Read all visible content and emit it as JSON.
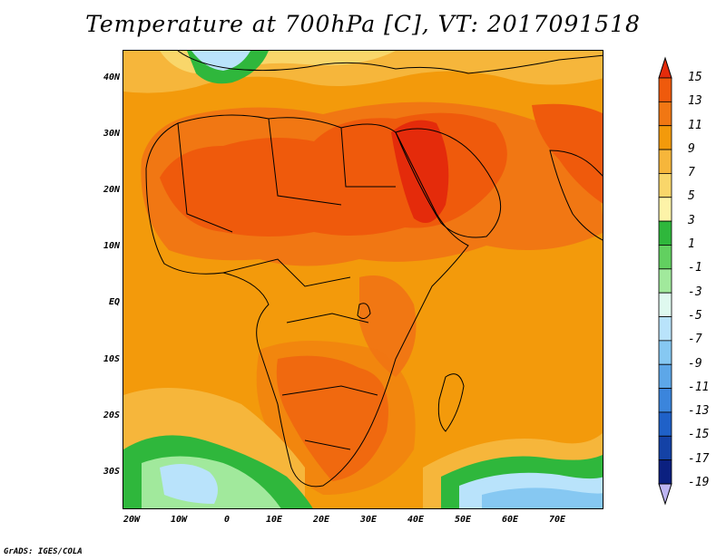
{
  "title": "Temperature at 700hPa [C], VT: 2017091518",
  "credit": "GrADS: IGES/COLA",
  "axes": {
    "lat_labels": [
      "40N",
      "30N",
      "20N",
      "10N",
      "EQ",
      "10S",
      "20S",
      "30S"
    ],
    "lon_labels": [
      "20W",
      "10W",
      "0",
      "10E",
      "20E",
      "30E",
      "40E",
      "50E",
      "60E",
      "70E"
    ]
  },
  "colorbar": {
    "labels": [
      "15",
      "13",
      "11",
      "9",
      "7",
      "5",
      "3",
      "1",
      "-1",
      "-3",
      "-5",
      "-7",
      "-9",
      "-11",
      "-13",
      "-15",
      "-17",
      "-19"
    ],
    "colors": [
      "#e42b0b",
      "#ef5a0c",
      "#f17713",
      "#f39a0b",
      "#f6b63b",
      "#f9d66a",
      "#fdf3a8",
      "#2fb73c",
      "#62d060",
      "#a1e99c",
      "#dff9ef",
      "#b9e3fb",
      "#86c8f2",
      "#5da7e8",
      "#3b85dc",
      "#1f61c8",
      "#1442a6",
      "#0b2080",
      "#bdb5f2"
    ]
  },
  "fields": {
    "base": "#f39a0b",
    "warm": "#f17713",
    "hot": "#ef5a0c",
    "hottest": "#e42b0b",
    "cool": "#f6b63b",
    "mild": "#f9d66a",
    "cold_green": "#62d060",
    "dark_green": "#2fb73c",
    "pale_green": "#a1e99c",
    "pale_blue": "#b9e3fb",
    "blue": "#86c8f2",
    "mid_blue": "#5da7e8"
  }
}
